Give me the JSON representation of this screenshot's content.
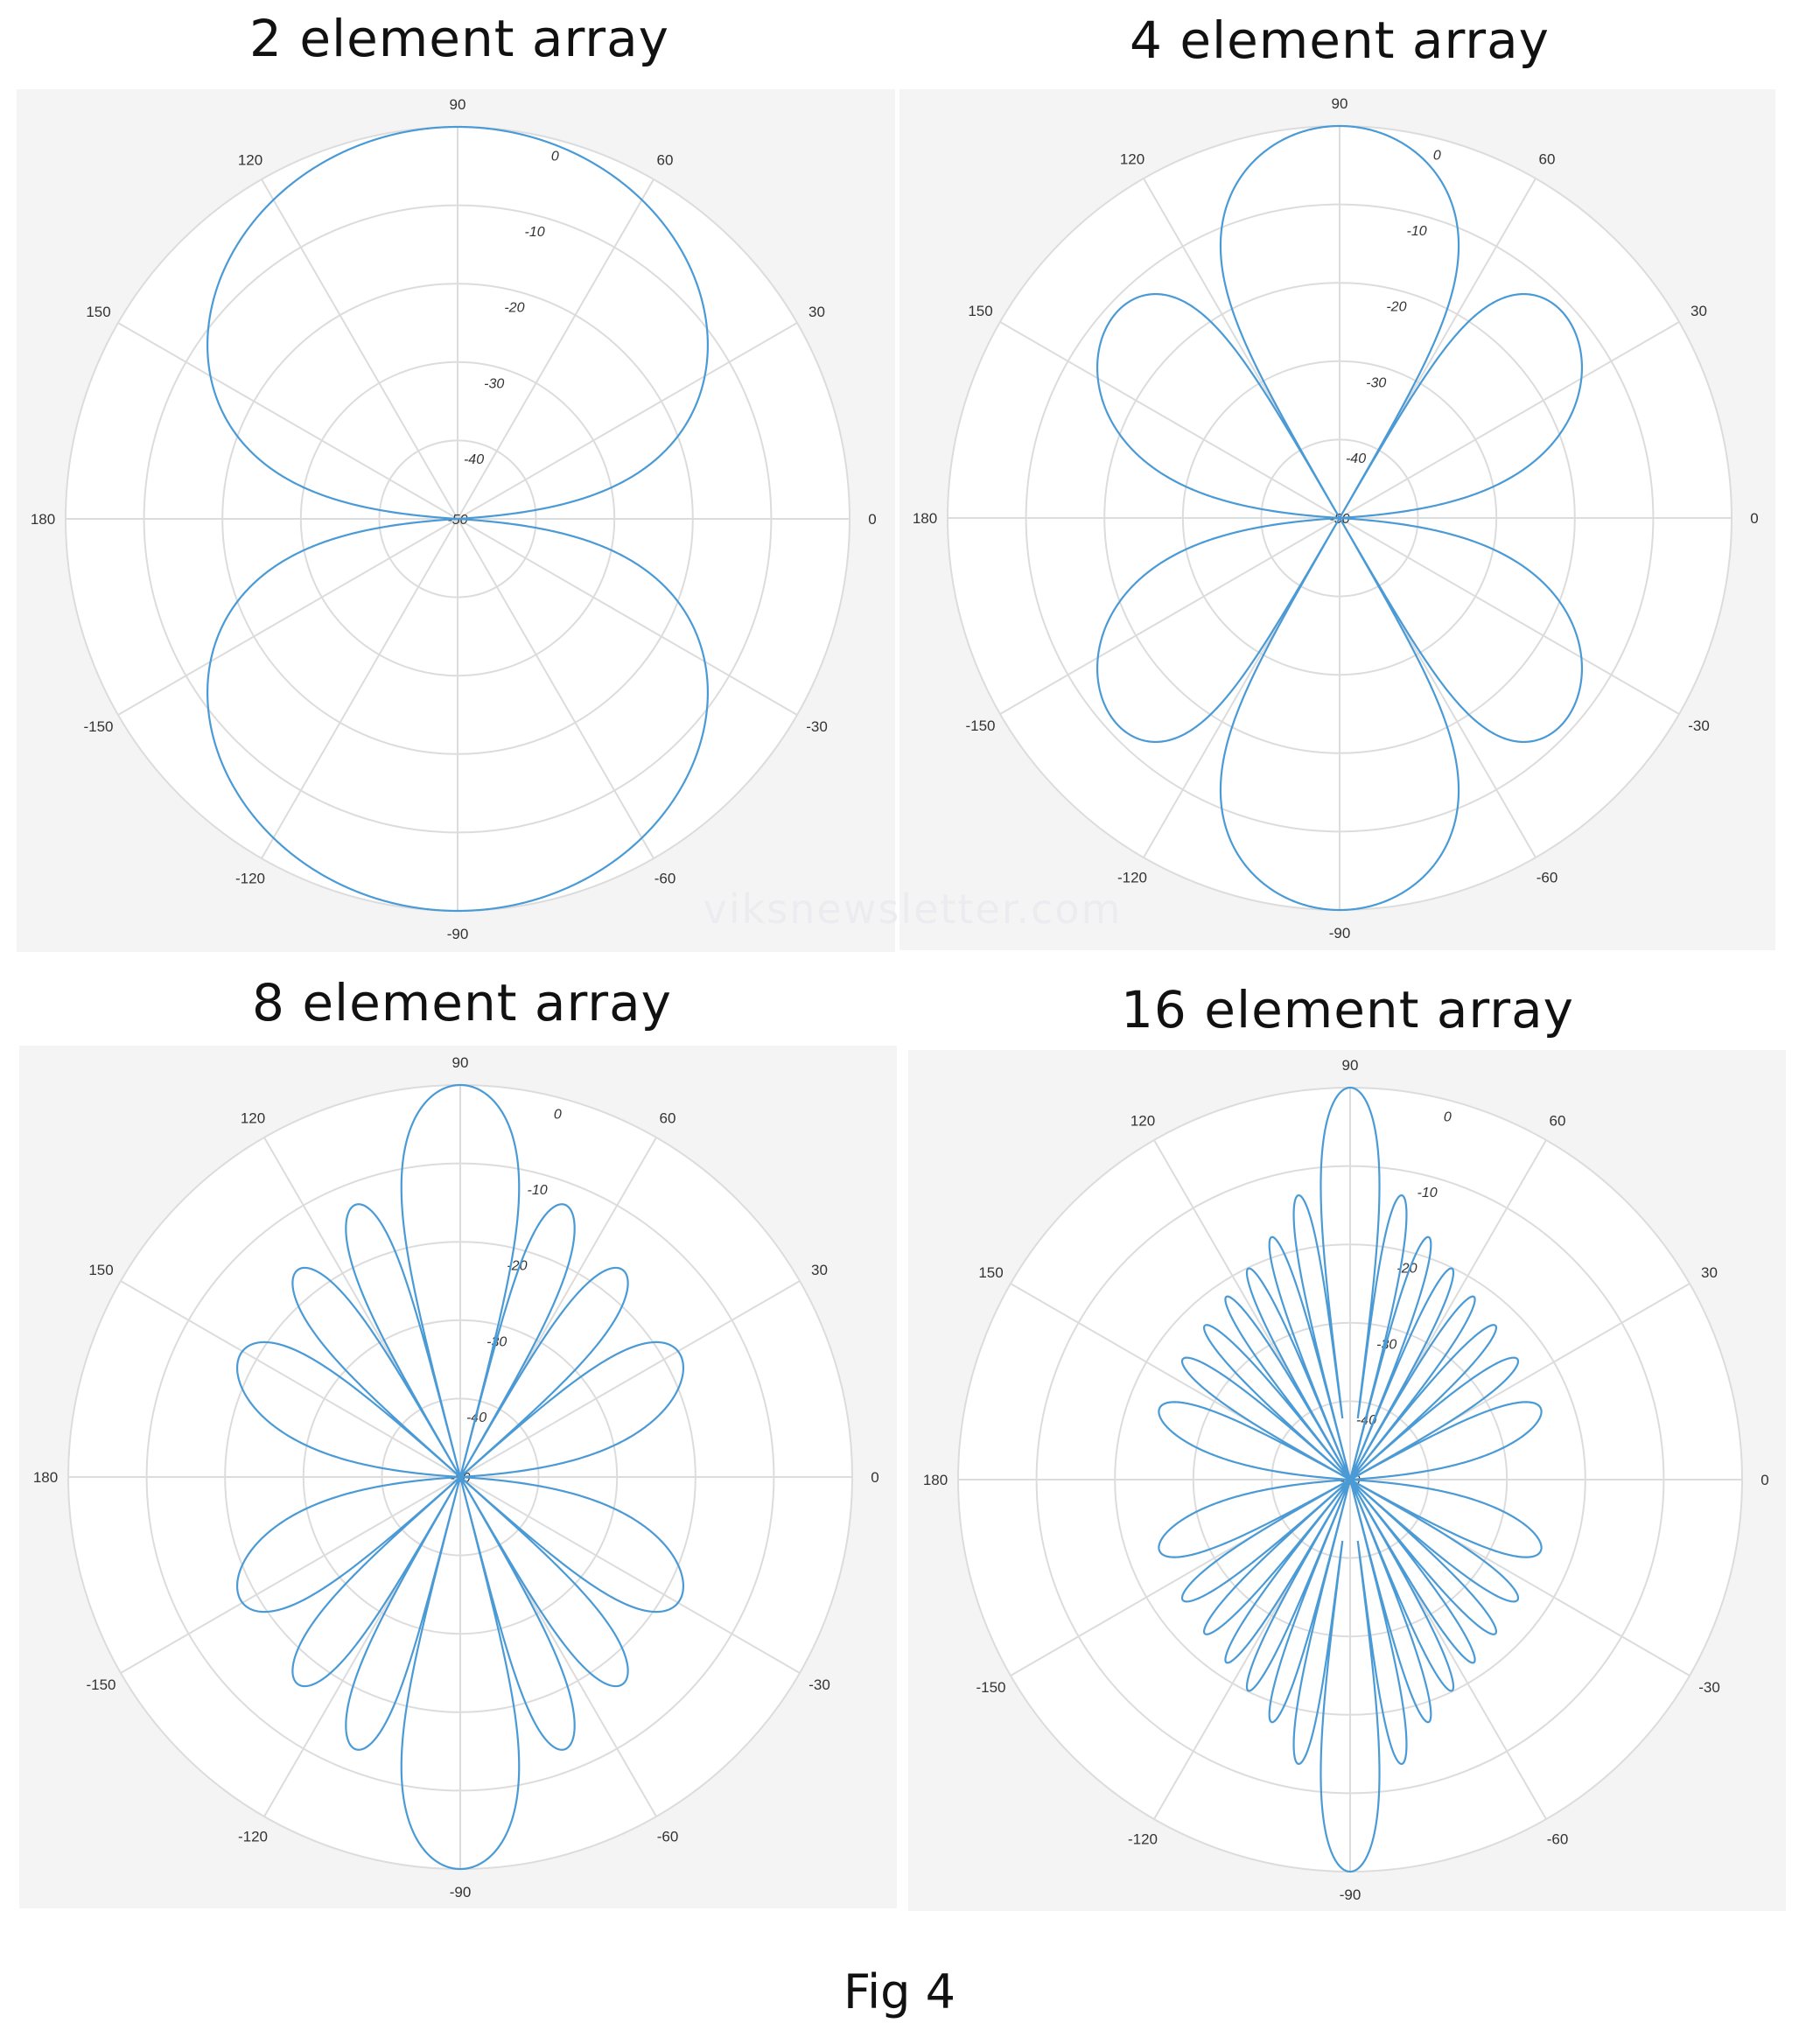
{
  "watermark": "viksnewsletter.com",
  "caption": "Fig 4",
  "style": {
    "line_color": "#4a9ad6",
    "plot_background": "#f4f4f4",
    "polar_background": "#ffffff",
    "grid_color": "#dcdcdc"
  },
  "chart_data": [
    {
      "type": "polar-line",
      "title": "2 element array",
      "array_elements": 2,
      "rlim": [
        -50,
        0
      ],
      "r_unit": "dB",
      "theta_ticks": [
        "0",
        "30",
        "60",
        "90",
        "120",
        "150",
        "180",
        "-150",
        "-120",
        "-90",
        "-60",
        "-30"
      ],
      "r_ticks": [
        "0",
        "-10",
        "-20",
        "-30",
        "-40",
        "-50"
      ],
      "grid": true
    },
    {
      "type": "polar-line",
      "title": "4 element array",
      "array_elements": 4,
      "rlim": [
        -50,
        0
      ],
      "r_unit": "dB",
      "theta_ticks": [
        "0",
        "30",
        "60",
        "90",
        "120",
        "150",
        "180",
        "-150",
        "-120",
        "-90",
        "-60",
        "-30"
      ],
      "r_ticks": [
        "0",
        "-10",
        "-20",
        "-30",
        "-40",
        "-50"
      ],
      "grid": true
    },
    {
      "type": "polar-line",
      "title": "8 element array",
      "array_elements": 8,
      "rlim": [
        -50,
        0
      ],
      "r_unit": "dB",
      "theta_ticks": [
        "0",
        "30",
        "60",
        "90",
        "120",
        "150",
        "180",
        "-150",
        "-120",
        "-90",
        "-60",
        "-30"
      ],
      "r_ticks": [
        "0",
        "-10",
        "-20",
        "-30",
        "-40",
        "-50"
      ],
      "grid": true
    },
    {
      "type": "polar-line",
      "title": "16 element array",
      "array_elements": 16,
      "rlim": [
        -50,
        0
      ],
      "r_unit": "dB",
      "theta_ticks": [
        "0",
        "30",
        "60",
        "90",
        "120",
        "150",
        "180",
        "-150",
        "-120",
        "-90",
        "-60",
        "-30"
      ],
      "r_ticks": [
        "0",
        "-10",
        "-20",
        "-30",
        "-40",
        "-50"
      ],
      "grid": true
    }
  ]
}
